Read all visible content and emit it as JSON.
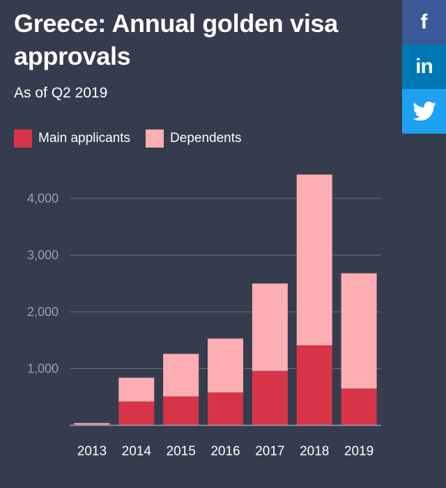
{
  "share": {
    "facebook_icon": "f",
    "linkedin_icon": "in",
    "twitter_icon": "twitter-bird-icon",
    "colors": {
      "facebook": "#3b5998",
      "linkedin": "#0077b5",
      "twitter": "#1da1f2"
    }
  },
  "chart_data": {
    "type": "bar",
    "stacked": true,
    "title": "Greece: Annual golden visa approvals",
    "subtitle": "As of Q2 2019",
    "categories": [
      "2013",
      "2014",
      "2015",
      "2016",
      "2017",
      "2018",
      "2019"
    ],
    "series": [
      {
        "name": "Main applicants",
        "color": "#d73447",
        "values": [
          15,
          420,
          510,
          580,
          960,
          1410,
          650
        ]
      },
      {
        "name": "Dependents",
        "color": "#fdaeb2",
        "values": [
          25,
          420,
          750,
          950,
          1540,
          3010,
          2030
        ]
      }
    ],
    "yticks": [
      "1,000",
      "2,000",
      "3,000",
      "4,000"
    ],
    "yticks_values": [
      1000,
      2000,
      3000,
      4000
    ],
    "ylim": [
      0,
      4500
    ],
    "grid": true,
    "legend_position": "top-left",
    "background": "#353c4d"
  }
}
